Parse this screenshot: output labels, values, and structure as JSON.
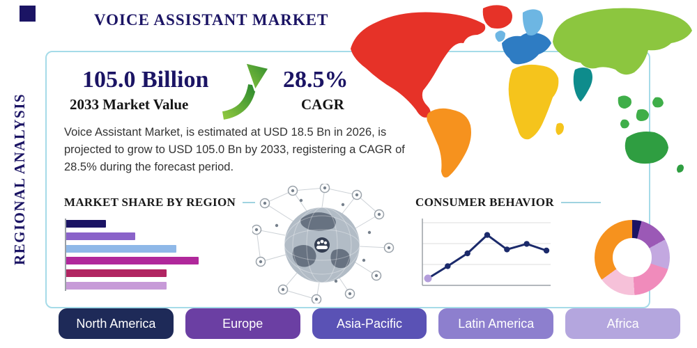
{
  "page": {
    "title": "VOICE ASSISTANT MARKET",
    "side_label": "REGIONAL ANALYSIS",
    "navy": "#1b1464",
    "panel_border": "#a5dbe8"
  },
  "stats": {
    "market_value": "105.0 Billion",
    "market_value_caption": "2033 Market Value",
    "cagr_value": "28.5%",
    "cagr_caption": "CAGR",
    "description": "Voice Assistant Market, is estimated at USD 18.5 Bn in 2026, is projected to grow to USD 105.0 Bn by 2033, registering a CAGR of 28.5% during the forecast period.",
    "arrow_color_light": "#8dc63f",
    "arrow_color_dark": "#2e8b2e"
  },
  "sections": {
    "market_share_title": "MARKET SHARE BY REGION",
    "consumer_behavior_title": "CONSUMER BEHAVIOR"
  },
  "region_buttons": [
    {
      "label": "North America",
      "color": "#1e2a58"
    },
    {
      "label": "Europe",
      "color": "#6b3fa3"
    },
    {
      "label": "Asia-Pacific",
      "color": "#5a52b5"
    },
    {
      "label": "Latin America",
      "color": "#8d7fce"
    },
    {
      "label": "Africa",
      "color": "#b4a6de"
    }
  ],
  "map": {
    "regions": [
      {
        "name": "north-america",
        "color": "#e63228"
      },
      {
        "name": "greenland",
        "color": "#e63228"
      },
      {
        "name": "south-america",
        "color": "#f6921e"
      },
      {
        "name": "europe",
        "color": "#2e7cc3"
      },
      {
        "name": "scandinavia",
        "color": "#6db6e3"
      },
      {
        "name": "asia",
        "color": "#8cc63f"
      },
      {
        "name": "india",
        "color": "#0e8c8c"
      },
      {
        "name": "southeast-asia",
        "color": "#3fae49"
      },
      {
        "name": "africa",
        "color": "#f5c41c"
      },
      {
        "name": "australia",
        "color": "#2f9e41"
      }
    ]
  },
  "chart_data": [
    {
      "type": "bar",
      "title": "MARKET SHARE BY REGION",
      "orientation": "horizontal",
      "categories": [
        "region-1",
        "region-2",
        "region-3",
        "region-4",
        "region-5",
        "region-6"
      ],
      "values": [
        30,
        52,
        83,
        100,
        76,
        76
      ],
      "colors": [
        "#1b1464",
        "#8a63c9",
        "#8fb8e8",
        "#b0289b",
        "#b12562",
        "#c79ad8"
      ],
      "xlim": [
        0,
        100
      ],
      "grid": false,
      "note": "values are relative bar lengths, max bar = 100"
    },
    {
      "type": "line",
      "title": "CONSUMER BEHAVIOR",
      "x": [
        1,
        2,
        3,
        4,
        5,
        6,
        7
      ],
      "values": [
        10,
        32,
        55,
        88,
        62,
        72,
        60
      ],
      "ylim": [
        0,
        100
      ],
      "line_color": "#1b2a6b",
      "point_colors": [
        "#b39ddb",
        "#1b2a6b",
        "#1b2a6b",
        "#1b2a6b",
        "#1b2a6b",
        "#1b2a6b",
        "#1b2a6b"
      ],
      "grid": true,
      "legend": "none"
    },
    {
      "type": "pie",
      "donut": true,
      "title": "",
      "slices": [
        {
          "label": "slice-1",
          "value": 4,
          "color": "#1b1464"
        },
        {
          "label": "slice-2",
          "value": 13,
          "color": "#9b59b6"
        },
        {
          "label": "slice-3",
          "value": 13,
          "color": "#c3a8e0"
        },
        {
          "label": "slice-4",
          "value": 19,
          "color": "#f08bbb"
        },
        {
          "label": "slice-5",
          "value": 16,
          "color": "#f6c1d9"
        },
        {
          "label": "slice-6",
          "value": 35,
          "color": "#f6921e"
        }
      ]
    }
  ]
}
